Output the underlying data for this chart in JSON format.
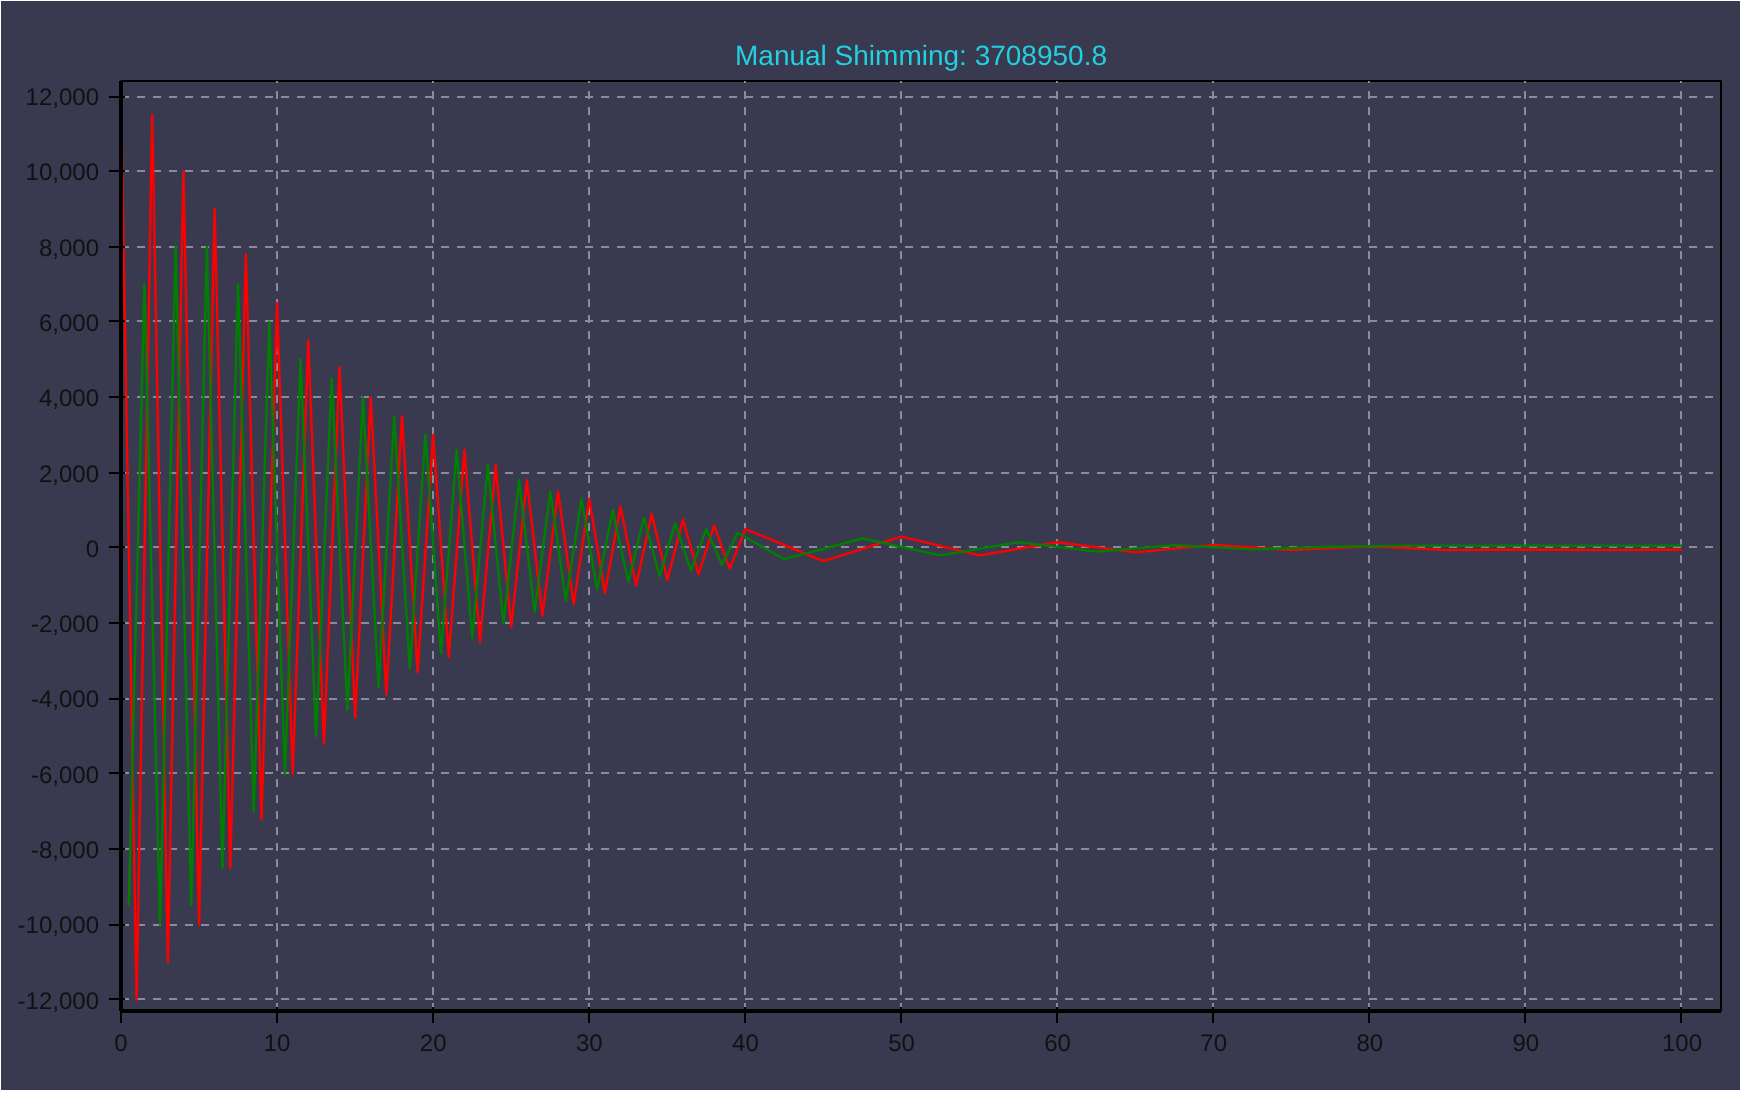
{
  "chart_data": {
    "type": "line",
    "title": "Manual Shimming: 3708950.8",
    "xlim": [
      0,
      102.5
    ],
    "ylim": [
      -12300,
      12400
    ],
    "xticks": [
      0,
      10,
      20,
      30,
      40,
      50,
      60,
      70,
      80,
      90,
      100
    ],
    "yticks": [
      {
        "value": -12000,
        "label": "-12,000"
      },
      {
        "value": -10000,
        "label": "-10,000"
      },
      {
        "value": -8000,
        "label": "-8,000"
      },
      {
        "value": -6000,
        "label": "-6,000"
      },
      {
        "value": -4000,
        "label": "-4,000"
      },
      {
        "value": -2000,
        "label": "-2,000"
      },
      {
        "value": 0,
        "label": "0"
      },
      {
        "value": 2000,
        "label": "2,000"
      },
      {
        "value": 4000,
        "label": "4,000"
      },
      {
        "value": 6000,
        "label": "6,000"
      },
      {
        "value": 8000,
        "label": "8,000"
      },
      {
        "value": 10000,
        "label": "10,000"
      },
      {
        "value": 12000,
        "label": "12,000"
      }
    ],
    "grid": true,
    "line_style": "solid",
    "series": [
      {
        "color": "#ff0000",
        "x": [
          0,
          1,
          2,
          3,
          4,
          5,
          6,
          7,
          8,
          9,
          10,
          11,
          12,
          13,
          14,
          15,
          16,
          17,
          18,
          19,
          20,
          21,
          22,
          23,
          24,
          25,
          26,
          27,
          28,
          29,
          30,
          31,
          32,
          33,
          34,
          35,
          36,
          37,
          38,
          39,
          40,
          45,
          50,
          55,
          60,
          65,
          70,
          75,
          80,
          85,
          90,
          95,
          100
        ],
        "values": [
          12000,
          -12000,
          11500,
          -11000,
          10000,
          -10000,
          9000,
          -8500,
          7800,
          -7200,
          6500,
          -6000,
          5500,
          -5200,
          4800,
          -4500,
          4000,
          -3900,
          3500,
          -3300,
          3000,
          -2900,
          2600,
          -2500,
          2200,
          -2100,
          1800,
          -1800,
          1500,
          -1500,
          1300,
          -1200,
          1100,
          -1000,
          900,
          -850,
          750,
          -700,
          600,
          -550,
          500,
          -350,
          300,
          -200,
          150,
          -120,
          80,
          -60,
          40,
          -60,
          -50,
          -60,
          -50
        ]
      },
      {
        "color": "#008000",
        "x": [
          0.5,
          1.5,
          2.5,
          3.5,
          4.5,
          5.5,
          6.5,
          7.5,
          8.5,
          9.5,
          10.5,
          11.5,
          12.5,
          13.5,
          14.5,
          15.5,
          16.5,
          17.5,
          18.5,
          19.5,
          20.5,
          21.5,
          22.5,
          23.5,
          24.5,
          25.5,
          26.5,
          27.5,
          28.5,
          29.5,
          30.5,
          31.5,
          32.5,
          33.5,
          34.5,
          35.5,
          36.5,
          37.5,
          38.5,
          39.5,
          42.5,
          47.5,
          52.5,
          57.5,
          62.5,
          67.5,
          72.5,
          77.5,
          82.5,
          90,
          100
        ],
        "values": [
          -9500,
          7000,
          -10000,
          8000,
          -9500,
          8000,
          -8500,
          7000,
          -7000,
          6000,
          -6000,
          5000,
          -5000,
          4500,
          -4300,
          4000,
          -3700,
          3500,
          -3200,
          3000,
          -2800,
          2600,
          -2400,
          2200,
          -2000,
          1800,
          -1700,
          1500,
          -1400,
          1300,
          -1100,
          1000,
          -900,
          800,
          -750,
          650,
          -600,
          500,
          -450,
          400,
          -300,
          250,
          -200,
          150,
          -100,
          70,
          -40,
          30,
          60,
          60,
          60
        ]
      }
    ]
  }
}
